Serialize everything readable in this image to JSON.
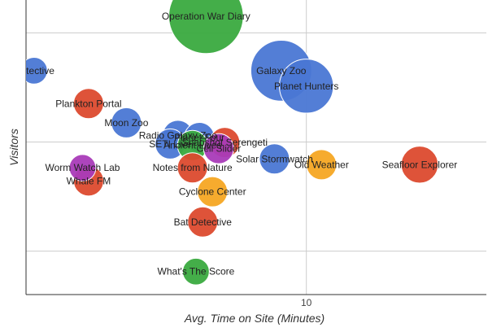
{
  "chart_data": {
    "type": "scatter",
    "subtype": "bubble",
    "xlabel": "Avg. Time on Site (Minutes)",
    "ylabel": "Visitors",
    "x_scale": "log",
    "y_scale": "log",
    "xlim": [
      2.4,
      25
    ],
    "ylim": [
      4000,
      2000000
    ],
    "x_ticks": [
      10
    ],
    "x_tick_labels": [
      "10"
    ],
    "grid": true,
    "legend": "none",
    "colors": {
      "blue": "#4a77d4",
      "green": "#3aaa3f",
      "red": "#dc4a2e",
      "orange": "#f5a623",
      "purple": "#a93bb8"
    },
    "points": [
      {
        "label": "Operation War Diary",
        "x": 6.0,
        "y": 1420000,
        "size": 9,
        "color": "green"
      },
      {
        "label": "Detective",
        "x": 2.5,
        "y": 450000,
        "size": 2,
        "color": "blue"
      },
      {
        "label": "Galaxy Zoo",
        "x": 8.8,
        "y": 450000,
        "size": 7,
        "color": "blue"
      },
      {
        "label": "Planet Hunters",
        "x": 10.0,
        "y": 325000,
        "size": 6,
        "color": "blue"
      },
      {
        "label": "Plankton Portal",
        "x": 3.3,
        "y": 225000,
        "size": 2.5,
        "color": "red"
      },
      {
        "label": "Moon Zoo",
        "x": 4.0,
        "y": 150000,
        "size": 2.5,
        "color": "blue"
      },
      {
        "label": "Radio Galaxy Zoo",
        "x": 5.2,
        "y": 115000,
        "size": 2.5,
        "color": "blue"
      },
      {
        "label": "Planet Four",
        "x": 5.8,
        "y": 110000,
        "size": 2.5,
        "color": "blue"
      },
      {
        "label": "SETI Live",
        "x": 5.0,
        "y": 96000,
        "size": 2.5,
        "color": "blue"
      },
      {
        "label": "Ancient Lives",
        "x": 5.6,
        "y": 93000,
        "size": 2.5,
        "color": "green"
      },
      {
        "label": "Snapshot Serengeti",
        "x": 6.6,
        "y": 99000,
        "size": 2.5,
        "color": "red"
      },
      {
        "label": "Cell Slider",
        "x": 6.4,
        "y": 87000,
        "size": 2.5,
        "color": "purple"
      },
      {
        "label": "Solar Stormwatch",
        "x": 8.5,
        "y": 70000,
        "size": 2.5,
        "color": "blue"
      },
      {
        "label": "Old Weather",
        "x": 10.8,
        "y": 62000,
        "size": 2.5,
        "color": "orange"
      },
      {
        "label": "Seafloor Explorer",
        "x": 17.8,
        "y": 62000,
        "size": 3.5,
        "color": "red"
      },
      {
        "label": "Worm Watch Lab",
        "x": 3.2,
        "y": 58000,
        "size": 2,
        "color": "purple"
      },
      {
        "label": "Notes from Nature",
        "x": 5.6,
        "y": 58000,
        "size": 2.5,
        "color": "red"
      },
      {
        "label": "Whale FM",
        "x": 3.3,
        "y": 44000,
        "size": 2.5,
        "color": "red"
      },
      {
        "label": "Cyclone Center",
        "x": 6.2,
        "y": 35000,
        "size": 2.5,
        "color": "orange"
      },
      {
        "label": "Bat Detective",
        "x": 5.9,
        "y": 18500,
        "size": 2.5,
        "color": "red"
      },
      {
        "label": "What's The Score",
        "x": 5.7,
        "y": 6500,
        "size": 2,
        "color": "green"
      }
    ]
  }
}
